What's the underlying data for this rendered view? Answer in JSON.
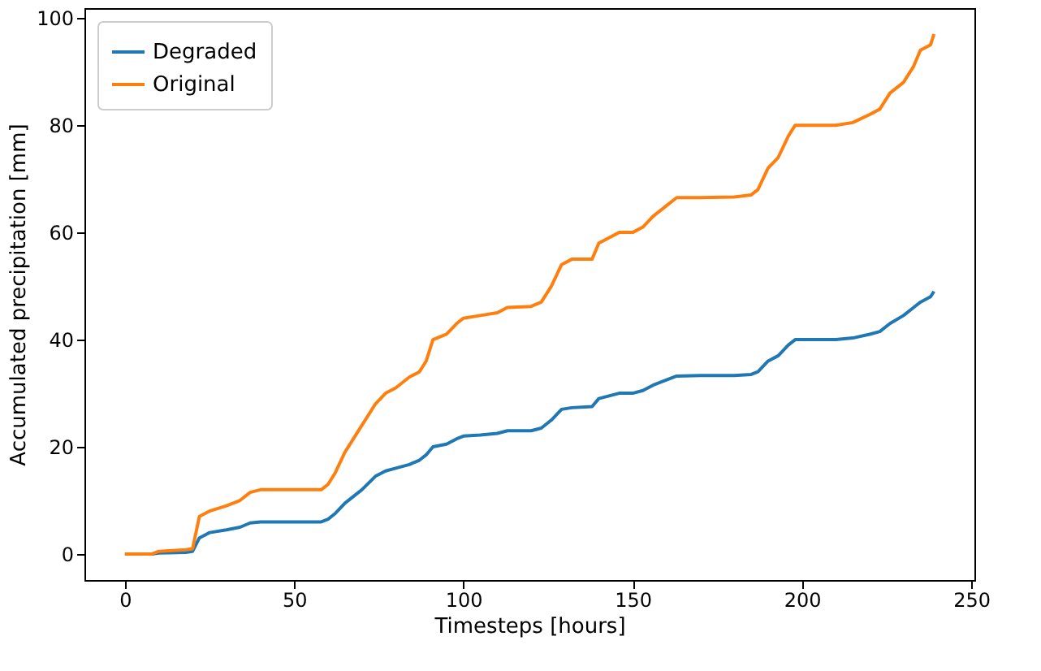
{
  "chart_data": {
    "type": "line",
    "xlabel": "Timesteps [hours]",
    "ylabel": "Accumulated precipitation [mm]",
    "x": [
      0,
      8,
      10,
      18,
      20,
      22,
      25,
      30,
      34,
      37,
      40,
      58,
      60,
      62,
      65,
      70,
      74,
      77,
      80,
      84,
      87,
      89,
      91,
      95,
      98,
      100,
      105,
      110,
      113,
      120,
      123,
      126,
      129,
      132,
      138,
      140,
      143,
      146,
      150,
      153,
      156,
      160,
      163,
      170,
      180,
      185,
      187,
      190,
      193,
      196,
      198,
      210,
      215,
      220,
      223,
      226,
      230,
      233,
      235,
      238,
      239
    ],
    "series": [
      {
        "name": "Degraded",
        "color": "#1f77b4",
        "values": [
          0,
          0,
          0.2,
          0.3,
          0.5,
          3,
          4,
          4.5,
          5,
          5.8,
          6,
          6,
          6.5,
          7.5,
          9.5,
          12,
          14.5,
          15.5,
          16,
          16.7,
          17.5,
          18.5,
          20,
          20.5,
          21.5,
          22,
          22.2,
          22.5,
          23,
          23,
          23.5,
          25,
          27,
          27.3,
          27.5,
          29,
          29.5,
          30,
          30,
          30.5,
          31.5,
          32.5,
          33.2,
          33.3,
          33.3,
          33.5,
          34,
          36,
          37,
          39,
          40,
          40,
          40.3,
          41,
          41.5,
          43,
          44.5,
          46,
          47,
          48,
          49
        ]
      },
      {
        "name": "Original",
        "color": "#ff7f0e",
        "values": [
          0,
          0,
          0.5,
          0.8,
          1,
          7,
          8,
          9,
          10,
          11.5,
          12,
          12,
          13,
          15,
          19,
          24,
          28,
          30,
          31,
          33,
          34,
          36,
          40,
          41,
          43,
          44,
          44.5,
          45,
          46,
          46.2,
          47,
          50,
          54,
          55,
          55,
          58,
          59,
          60,
          60,
          61,
          63,
          65,
          66.5,
          66.5,
          66.6,
          67,
          68,
          72,
          74,
          78,
          80,
          80,
          80.5,
          82,
          83,
          86,
          88,
          91,
          94,
          95,
          97
        ]
      }
    ],
    "xlim": [
      -11.95,
      250.95
    ],
    "ylim": [
      -4.85,
      101.85
    ],
    "xticks": [
      0,
      50,
      100,
      150,
      200,
      250
    ],
    "yticks": [
      0,
      20,
      40,
      60,
      80,
      100
    ],
    "legend": "top left",
    "grid": false,
    "marker": "none",
    "line_style": "solid"
  }
}
